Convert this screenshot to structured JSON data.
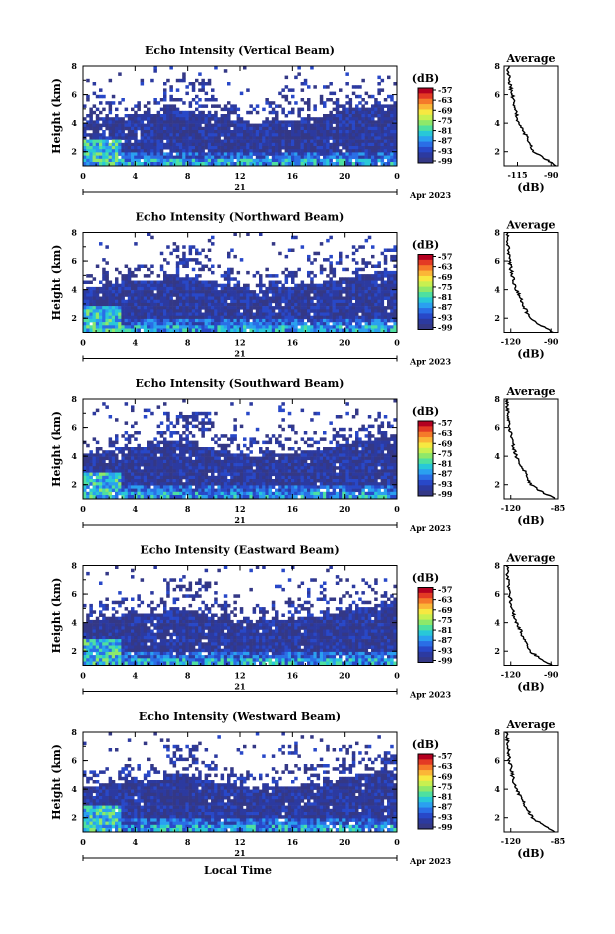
{
  "figure": {
    "xlabel": "Local Time",
    "date_label": "Apr 2023",
    "day_label": "21"
  },
  "colorbar": {
    "unit": "(dB)",
    "tick_labels": [
      "-57",
      "-63",
      "-69",
      "-75",
      "-81",
      "-87",
      "-93",
      "-99"
    ],
    "colors": [
      "#b40020",
      "#e33a24",
      "#f57a2a",
      "#fbb637",
      "#f7e841",
      "#c8f050",
      "#8ee86a",
      "#4ee0a0",
      "#28c8d8",
      "#2aa0f0",
      "#2a6ee6",
      "#2848c8",
      "#2c3aa0",
      "#343886"
    ]
  },
  "chart_data": [
    {
      "type": "heatmap",
      "title": "Echo Intensity (Vertical Beam)",
      "ylabel": "Height (km)",
      "x_ticks": [
        "0",
        "4",
        "8",
        "12",
        "16",
        "20",
        "0"
      ],
      "xlim": [
        0,
        24
      ],
      "y_ticks": [
        "2",
        "4",
        "6",
        "8"
      ],
      "ylim": [
        1,
        8
      ],
      "value_range": [
        -99,
        -57
      ],
      "profile": {
        "title": "Average",
        "xlabel": "(dB)",
        "x_ticks": [
          "-115",
          "-90"
        ],
        "xlim": [
          -125,
          -85
        ],
        "y_ticks": [
          "2",
          "4",
          "6",
          "8"
        ],
        "ylim": [
          1,
          8
        ],
        "height": [
          1.0,
          1.5,
          2.0,
          3.0,
          3.5,
          4.0,
          5.0,
          6.0,
          7.0,
          8.0
        ],
        "value": [
          -86,
          -94,
          -103,
          -108,
          -111,
          -114,
          -117,
          -119,
          -121,
          -122
        ]
      }
    },
    {
      "type": "heatmap",
      "title": "Echo Intensity (Northward Beam)",
      "ylabel": "Height (km)",
      "x_ticks": [
        "0",
        "4",
        "8",
        "12",
        "16",
        "20",
        "0"
      ],
      "xlim": [
        0,
        24
      ],
      "y_ticks": [
        "2",
        "4",
        "6",
        "8"
      ],
      "ylim": [
        1,
        8
      ],
      "value_range": [
        -99,
        -57
      ],
      "profile": {
        "title": "Average",
        "xlabel": "(dB)",
        "x_ticks": [
          "-120",
          "-90"
        ],
        "xlim": [
          -125,
          -85
        ],
        "y_ticks": [
          "2",
          "4",
          "6",
          "8"
        ],
        "ylim": [
          1,
          8
        ],
        "height": [
          1.0,
          1.5,
          2.0,
          3.0,
          3.5,
          4.0,
          5.0,
          6.0,
          7.0,
          8.0
        ],
        "value": [
          -88,
          -98,
          -106,
          -111,
          -113,
          -116,
          -119,
          -121,
          -122,
          -123
        ]
      }
    },
    {
      "type": "heatmap",
      "title": "Echo Intensity (Southward Beam)",
      "ylabel": "Height (km)",
      "x_ticks": [
        "0",
        "4",
        "8",
        "12",
        "16",
        "20",
        "0"
      ],
      "xlim": [
        0,
        24
      ],
      "y_ticks": [
        "2",
        "4",
        "6",
        "8"
      ],
      "ylim": [
        1,
        8
      ],
      "value_range": [
        -99,
        -57
      ],
      "profile": {
        "title": "Average",
        "xlabel": "(dB)",
        "x_ticks": [
          "-120",
          "-85"
        ],
        "xlim": [
          -125,
          -85
        ],
        "y_ticks": [
          "2",
          "4",
          "6",
          "8"
        ],
        "ylim": [
          1,
          8
        ],
        "height": [
          1.0,
          1.5,
          2.0,
          3.0,
          3.5,
          4.0,
          5.0,
          6.0,
          7.0,
          8.0
        ],
        "value": [
          -87,
          -97,
          -105,
          -110,
          -113,
          -116,
          -119,
          -121,
          -122,
          -123
        ]
      }
    },
    {
      "type": "heatmap",
      "title": "Echo Intensity (Eastward Beam)",
      "ylabel": "Height (km)",
      "x_ticks": [
        "0",
        "4",
        "8",
        "12",
        "16",
        "20",
        "0"
      ],
      "xlim": [
        0,
        24
      ],
      "y_ticks": [
        "2",
        "4",
        "6",
        "8"
      ],
      "ylim": [
        1,
        8
      ],
      "value_range": [
        -99,
        -57
      ],
      "profile": {
        "title": "Average",
        "xlabel": "(dB)",
        "x_ticks": [
          "-120",
          "-90"
        ],
        "xlim": [
          -125,
          -85
        ],
        "y_ticks": [
          "2",
          "4",
          "6",
          "8"
        ],
        "ylim": [
          1,
          8
        ],
        "height": [
          1.0,
          1.5,
          2.0,
          3.0,
          3.5,
          4.0,
          5.0,
          6.0,
          7.0,
          8.0
        ],
        "value": [
          -89,
          -98,
          -106,
          -111,
          -113,
          -116,
          -119,
          -121,
          -122,
          -123
        ]
      }
    },
    {
      "type": "heatmap",
      "title": "Echo Intensity (Westward Beam)",
      "ylabel": "Height (km)",
      "x_ticks": [
        "0",
        "4",
        "8",
        "12",
        "16",
        "20",
        "0"
      ],
      "xlim": [
        0,
        24
      ],
      "y_ticks": [
        "2",
        "4",
        "6",
        "8"
      ],
      "ylim": [
        1,
        8
      ],
      "value_range": [
        -99,
        -57
      ],
      "profile": {
        "title": "Average",
        "xlabel": "(dB)",
        "x_ticks": [
          "-120",
          "-85"
        ],
        "xlim": [
          -125,
          -85
        ],
        "y_ticks": [
          "2",
          "4",
          "6",
          "8"
        ],
        "ylim": [
          1,
          8
        ],
        "height": [
          1.0,
          1.5,
          2.0,
          3.0,
          3.5,
          4.0,
          5.0,
          6.0,
          7.0,
          8.0
        ],
        "value": [
          -87,
          -96,
          -104,
          -110,
          -113,
          -116,
          -119,
          -121,
          -122,
          -123
        ]
      }
    }
  ]
}
